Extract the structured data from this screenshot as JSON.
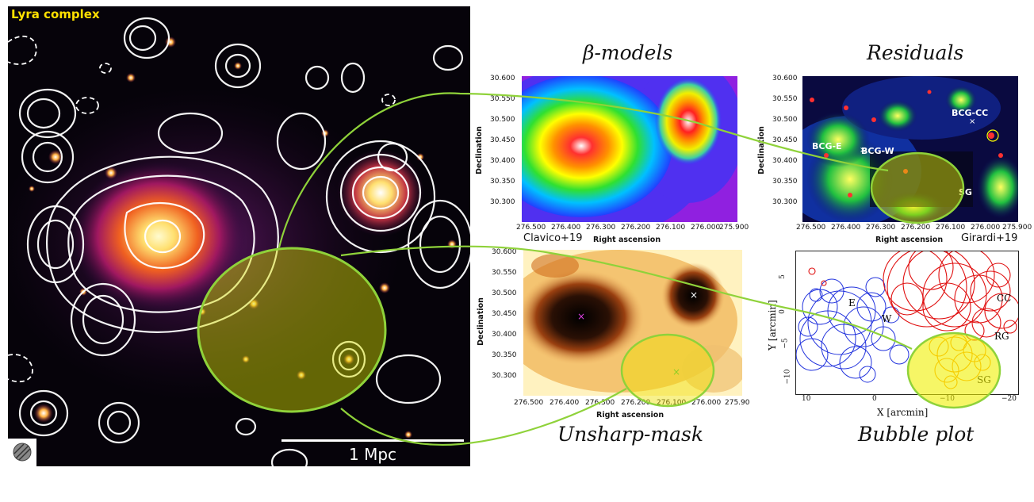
{
  "main_image": {
    "title": "Lyra complex",
    "scale_label": "1 Mpc",
    "title_color": "#ffe000"
  },
  "panels": {
    "beta_models": {
      "caption": "β-models",
      "xlabel": "Right ascension",
      "ylabel": "Declination",
      "xticks": [
        "276.500",
        "276.400",
        "276.300",
        "276.200",
        "276.100",
        "276.000",
        "275.900"
      ],
      "yticks": [
        "30.600",
        "30.550",
        "30.500",
        "30.450",
        "30.400",
        "30.350",
        "30.300"
      ]
    },
    "residuals": {
      "caption": "Residuals",
      "xlabel": "Right ascension",
      "ylabel": "Declination",
      "xticks": [
        "276.500",
        "276.400",
        "276.300",
        "276.200",
        "276.100",
        "276.000",
        "275.900"
      ],
      "yticks": [
        "30.600",
        "30.550",
        "30.500",
        "30.450",
        "30.400",
        "30.350",
        "30.300"
      ],
      "labels": [
        "BCG-CC",
        "BCG-E",
        "BCG-W",
        "SG"
      ]
    },
    "unsharp_mask": {
      "caption": "Unsharp-mask",
      "citation": "Clavico+19",
      "xlabel": "Right ascension",
      "ylabel": "Declination",
      "xticks": [
        "276.500",
        "276.400",
        "276.300",
        "276.200",
        "276.100",
        "276.000",
        "275.90"
      ],
      "yticks": [
        "30.600",
        "30.550",
        "30.500",
        "30.450",
        "30.400",
        "30.350",
        "30.300"
      ]
    },
    "bubble_plot": {
      "caption": "Bubble plot",
      "citation": "Girardi+19",
      "xlabel": "X [arcmin]",
      "ylabel": "Y [arcmin]",
      "xticks": [
        "10",
        "0",
        "−10",
        "−20"
      ],
      "yticks": [
        "5",
        "0",
        "−5",
        "−10"
      ],
      "labels": [
        "E",
        "W",
        "CC",
        "RG",
        "SG"
      ]
    }
  },
  "colors": {
    "highlight_green": "#8fd23a",
    "highlight_fill": "#d8e000",
    "bubble_blue": "#2233dd",
    "bubble_red": "#e01010",
    "bubble_orange": "#ff9900"
  }
}
